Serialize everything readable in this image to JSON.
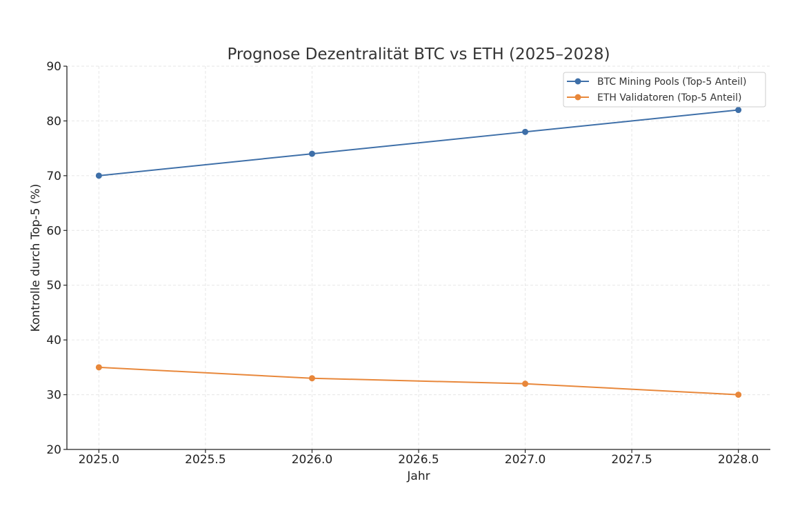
{
  "chart_data": {
    "type": "line",
    "title": "Prognose Dezentralität BTC vs ETH (2025–2028)",
    "xlabel": "Jahr",
    "ylabel": "Kontrolle durch Top-5 (%)",
    "x": [
      2025,
      2026,
      2027,
      2028
    ],
    "xlim": [
      2024.85,
      2028.15
    ],
    "ylim": [
      20,
      90
    ],
    "xticks": [
      "2025.0",
      "2025.5",
      "2026.0",
      "2026.5",
      "2027.0",
      "2027.5",
      "2028.0"
    ],
    "yticks": [
      "20",
      "30",
      "40",
      "50",
      "60",
      "70",
      "80",
      "90"
    ],
    "grid": true,
    "legend_position": "top-right",
    "series": [
      {
        "name": "BTC Mining Pools (Top-5 Anteil)",
        "values": [
          70,
          74,
          78,
          82
        ],
        "color": "#3e6fa8"
      },
      {
        "name": "ETH Validatoren (Top-5 Anteil)",
        "values": [
          35,
          33,
          32,
          30
        ],
        "color": "#e8873a"
      }
    ]
  }
}
